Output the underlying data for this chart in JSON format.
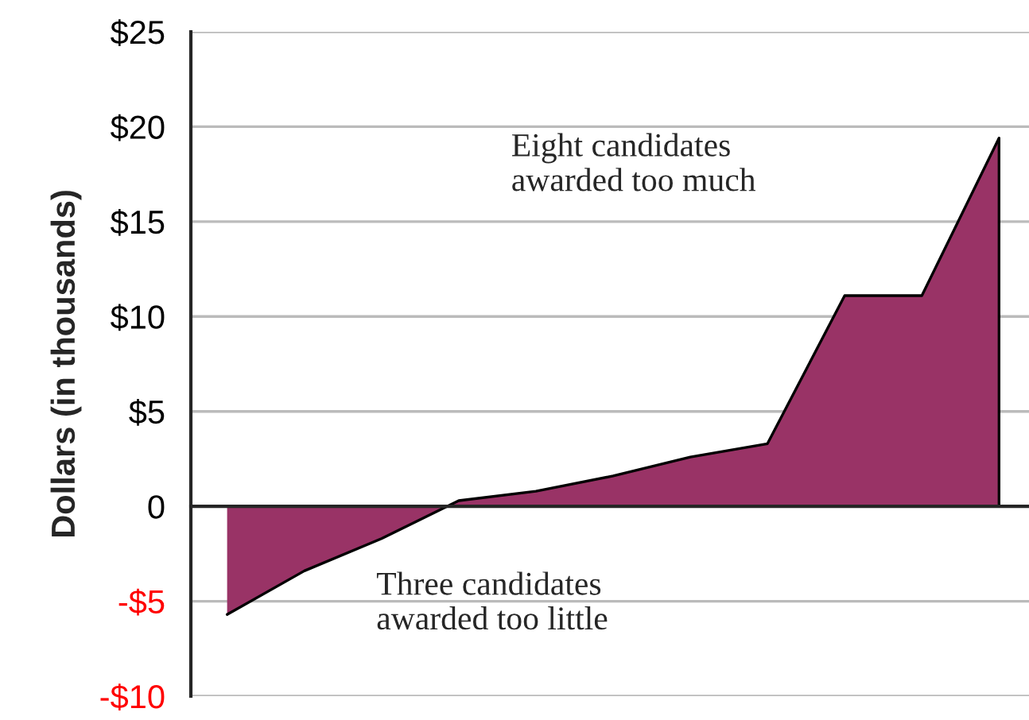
{
  "chart_data": {
    "type": "area",
    "ylabel": "Dollars (in thousands)",
    "categories": [
      null,
      null,
      null,
      null,
      null,
      null,
      null,
      null,
      null,
      null,
      null
    ],
    "series": [
      {
        "color": "#993366",
        "values": [
          -5.7,
          -3.4,
          -1.7,
          0.3,
          0.8,
          1.6,
          2.6,
          3.3,
          11.1,
          11.1,
          19.4
        ]
      }
    ],
    "ylim": [
      -10,
      25
    ],
    "yticks": [
      {
        "value": -10,
        "label": "-$10"
      },
      {
        "value": -5,
        "label": "-$5"
      },
      {
        "value": 0,
        "label": "0"
      },
      {
        "value": 5,
        "label": "$5"
      },
      {
        "value": 10,
        "label": "$10"
      },
      {
        "value": 15,
        "label": "$15"
      },
      {
        "value": 20,
        "label": "$20"
      },
      {
        "value": 25,
        "label": "$25"
      }
    ],
    "grid": "y",
    "annotations": [
      "Eight candidates\nawarded too much",
      "Three candidates\nawarded too little"
    ]
  }
}
